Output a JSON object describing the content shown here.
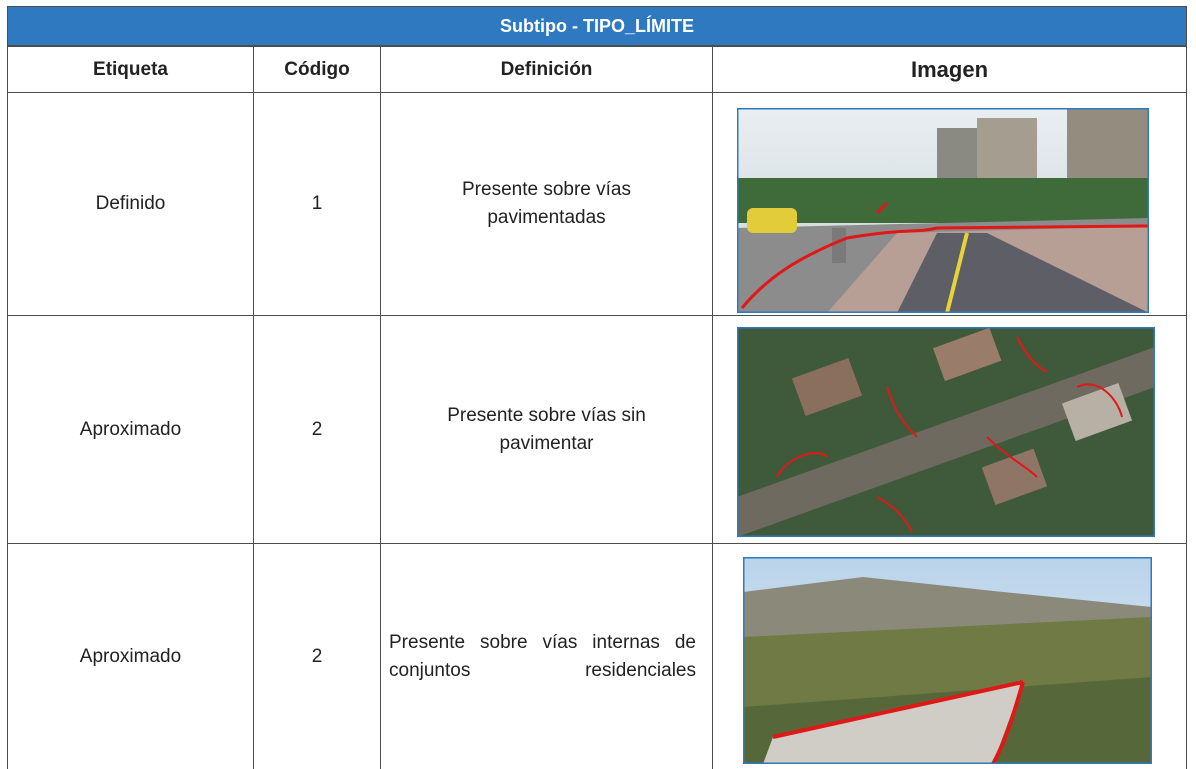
{
  "header": {
    "title": "Subtipo -  TIPO_LÍMITE"
  },
  "table": {
    "columns": [
      "Etiqueta",
      "Código",
      "Definición",
      "Imagen"
    ],
    "rows": [
      [
        "Definido",
        "1",
        "Presente sobre vías pavimentadas"
      ],
      [
        "Aproximado",
        "2",
        "Presente sobre vías sin pavimentar"
      ],
      [
        "Aproximado",
        "2",
        "Presente sobre vías internas de conjuntos residenciales"
      ]
    ]
  }
}
